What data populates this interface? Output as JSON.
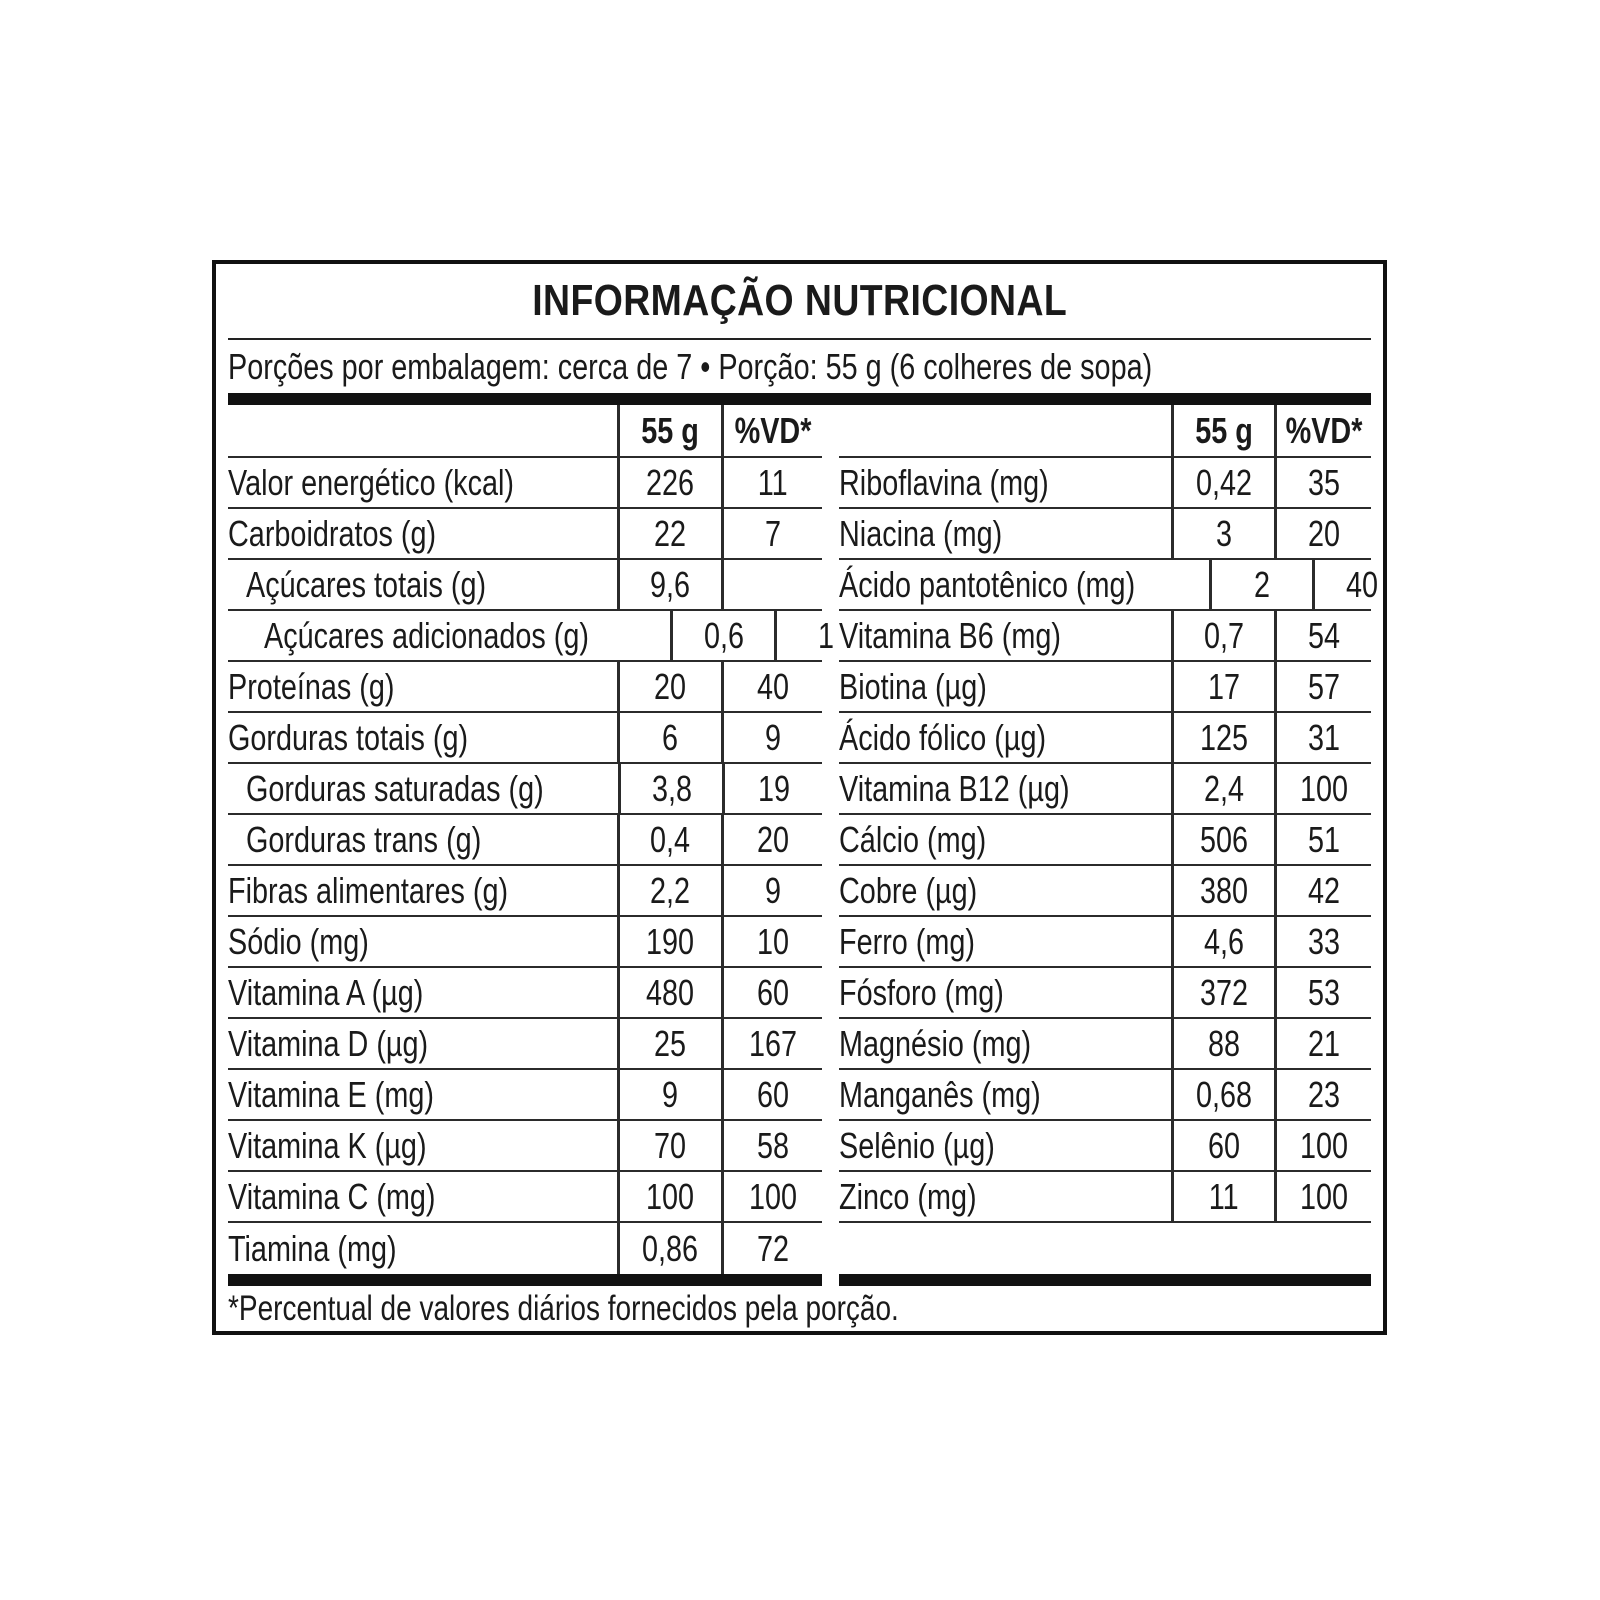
{
  "label": {
    "title": "INFORMAÇÃO NUTRICIONAL",
    "servings_line": "Porções por embalagem: cerca de 7 • Porção: 55 g (6 colheres de sopa)",
    "column_headers": {
      "amount": "55 g",
      "dv": "%VD*"
    },
    "left_rows": [
      {
        "name": "Valor energético (kcal)",
        "amount": "226",
        "dv": "11",
        "indent": 0
      },
      {
        "name": "Carboidratos (g)",
        "amount": "22",
        "dv": "7",
        "indent": 0
      },
      {
        "name": "Açúcares totais (g)",
        "amount": "9,6",
        "dv": "",
        "indent": 1
      },
      {
        "name": "Açúcares adicionados (g)",
        "amount": "0,6",
        "dv": "1",
        "indent": 2
      },
      {
        "name": "Proteínas (g)",
        "amount": "20",
        "dv": "40",
        "indent": 0
      },
      {
        "name": "Gorduras totais (g)",
        "amount": "6",
        "dv": "9",
        "indent": 0
      },
      {
        "name": "Gorduras saturadas (g)",
        "amount": "3,8",
        "dv": "19",
        "indent": 1
      },
      {
        "name": "Gorduras trans (g)",
        "amount": "0,4",
        "dv": "20",
        "indent": 1
      },
      {
        "name": "Fibras alimentares (g)",
        "amount": "2,2",
        "dv": "9",
        "indent": 0
      },
      {
        "name": "Sódio (mg)",
        "amount": "190",
        "dv": "10",
        "indent": 0
      },
      {
        "name": "Vitamina A (µg)",
        "amount": "480",
        "dv": "60",
        "indent": 0
      },
      {
        "name": "Vitamina D (µg)",
        "amount": "25",
        "dv": "167",
        "indent": 0
      },
      {
        "name": "Vitamina E (mg)",
        "amount": "9",
        "dv": "60",
        "indent": 0
      },
      {
        "name": "Vitamina K (µg)",
        "amount": "70",
        "dv": "58",
        "indent": 0
      },
      {
        "name": "Vitamina C (mg)",
        "amount": "100",
        "dv": "100",
        "indent": 0
      },
      {
        "name": "Tiamina (mg)",
        "amount": "0,86",
        "dv": "72",
        "indent": 0
      }
    ],
    "right_rows": [
      {
        "name": "Riboflavina (mg)",
        "amount": "0,42",
        "dv": "35",
        "indent": 0
      },
      {
        "name": "Niacina (mg)",
        "amount": "3",
        "dv": "20",
        "indent": 0
      },
      {
        "name": "Ácido pantotênico (mg)",
        "amount": "2",
        "dv": "40",
        "indent": 0
      },
      {
        "name": "Vitamina B6 (mg)",
        "amount": "0,7",
        "dv": "54",
        "indent": 0
      },
      {
        "name": "Biotina (µg)",
        "amount": "17",
        "dv": "57",
        "indent": 0
      },
      {
        "name": "Ácido fólico (µg)",
        "amount": "125",
        "dv": "31",
        "indent": 0
      },
      {
        "name": "Vitamina B12 (µg)",
        "amount": "2,4",
        "dv": "100",
        "indent": 0
      },
      {
        "name": "Cálcio (mg)",
        "amount": "506",
        "dv": "51",
        "indent": 0
      },
      {
        "name": "Cobre (µg)",
        "amount": "380",
        "dv": "42",
        "indent": 0
      },
      {
        "name": "Ferro (mg)",
        "amount": "4,6",
        "dv": "33",
        "indent": 0
      },
      {
        "name": "Fósforo (mg)",
        "amount": "372",
        "dv": "53",
        "indent": 0
      },
      {
        "name": "Magnésio (mg)",
        "amount": "88",
        "dv": "21",
        "indent": 0
      },
      {
        "name": "Manganês (mg)",
        "amount": "0,68",
        "dv": "23",
        "indent": 0
      },
      {
        "name": "Selênio (µg)",
        "amount": "60",
        "dv": "100",
        "indent": 0
      },
      {
        "name": "Zinco (mg)",
        "amount": "11",
        "dv": "100",
        "indent": 0
      }
    ],
    "footnote": "*Percentual de valores diários fornecidos pela porção.",
    "colors": {
      "text": "#1a1a1a",
      "line": "#2b2b2b",
      "bar": "#111111",
      "background": "#ffffff"
    }
  }
}
